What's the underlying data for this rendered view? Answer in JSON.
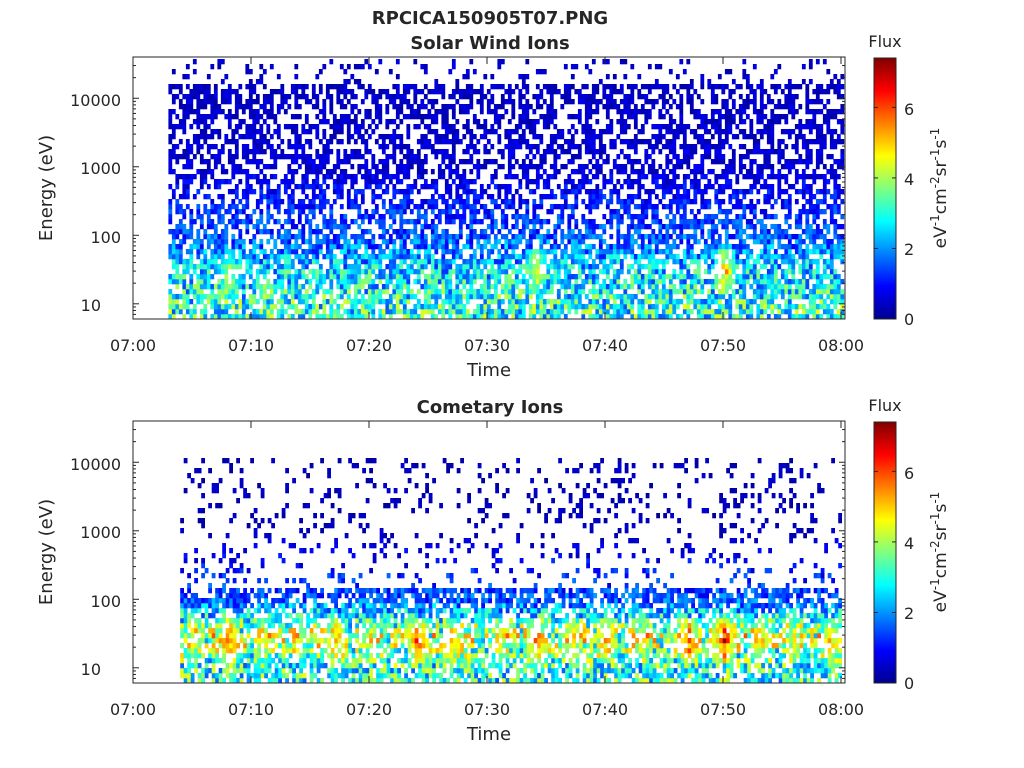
{
  "figure_title": "RPCICA150905T07.PNG",
  "chart_data": [
    {
      "type": "heatmap",
      "title": "Solar Wind Ions",
      "xlabel": "Time",
      "ylabel": "Energy (eV)",
      "x_ticks": [
        "07:00",
        "07:10",
        "07:20",
        "07:30",
        "07:40",
        "07:50",
        "08:00"
      ],
      "y_ticks": [
        "10",
        "100",
        "1000",
        "10000"
      ],
      "y_scale": "log",
      "y_range": [
        6,
        40000
      ],
      "x_range": [
        "07:00",
        "08:00"
      ],
      "data_start": "07:03",
      "colorbar": {
        "title": "Flux",
        "label": "eV-1cm-2sr-1s-1",
        "range": [
          0,
          7.4
        ],
        "ticks": [
          "0",
          "2",
          "4",
          "6"
        ]
      },
      "colormap": "jet",
      "flux_profile": [
        {
          "energy_eV": 10,
          "typical_flux": 3
        },
        {
          "energy_eV": 30,
          "typical_flux": 2.5
        },
        {
          "energy_eV": 100,
          "typical_flux": 1.5
        },
        {
          "energy_eV": 1000,
          "typical_flux": 0.6
        },
        {
          "energy_eV": 10000,
          "typical_flux": 0.5
        }
      ],
      "hotspots": [
        {
          "time": "07:08",
          "energy_eV": 25,
          "flux": 4.5
        },
        {
          "time": "07:34",
          "energy_eV": 30,
          "flux": 5
        },
        {
          "time": "07:50",
          "energy_eV": 30,
          "flux": 5.5
        }
      ]
    },
    {
      "type": "heatmap",
      "title": "Cometary Ions",
      "xlabel": "Time",
      "ylabel": "Energy (eV)",
      "x_ticks": [
        "07:00",
        "07:10",
        "07:20",
        "07:30",
        "07:40",
        "07:50",
        "08:00"
      ],
      "y_ticks": [
        "10",
        "100",
        "1000",
        "10000"
      ],
      "y_scale": "log",
      "y_range": [
        6,
        40000
      ],
      "x_range": [
        "07:00",
        "08:00"
      ],
      "data_start": "07:04",
      "colorbar": {
        "title": "Flux",
        "label": "eV-1cm-2sr-1s-1",
        "range": [
          0,
          7.4
        ],
        "ticks": [
          "0",
          "2",
          "4",
          "6"
        ]
      },
      "colormap": "jet",
      "flux_profile": [
        {
          "energy_eV": 10,
          "typical_flux": 3
        },
        {
          "energy_eV": 30,
          "typical_flux": 4
        },
        {
          "energy_eV": 100,
          "typical_flux": 1.5
        },
        {
          "energy_eV": 1000,
          "typical_flux": 0.4
        },
        {
          "energy_eV": 10000,
          "typical_flux": 0.4
        }
      ],
      "bursts": [
        {
          "time": "07:05",
          "flux": 5
        },
        {
          "time": "07:08",
          "flux": 6.5
        },
        {
          "time": "07:11",
          "flux": 5
        },
        {
          "time": "07:14",
          "flux": 4.5
        },
        {
          "time": "07:17",
          "flux": 6
        },
        {
          "time": "07:20",
          "flux": 5
        },
        {
          "time": "07:24",
          "flux": 6.5
        },
        {
          "time": "07:27",
          "flux": 5.5
        },
        {
          "time": "07:31",
          "flux": 5
        },
        {
          "time": "07:34",
          "flux": 6.5
        },
        {
          "time": "07:37",
          "flux": 5.5
        },
        {
          "time": "07:40",
          "flux": 6
        },
        {
          "time": "07:43",
          "flux": 5
        },
        {
          "time": "07:47",
          "flux": 6.5
        },
        {
          "time": "07:50",
          "flux": 7
        },
        {
          "time": "07:53",
          "flux": 5.5
        },
        {
          "time": "07:56",
          "flux": 5
        },
        {
          "time": "07:59",
          "flux": 5.5
        }
      ]
    }
  ]
}
